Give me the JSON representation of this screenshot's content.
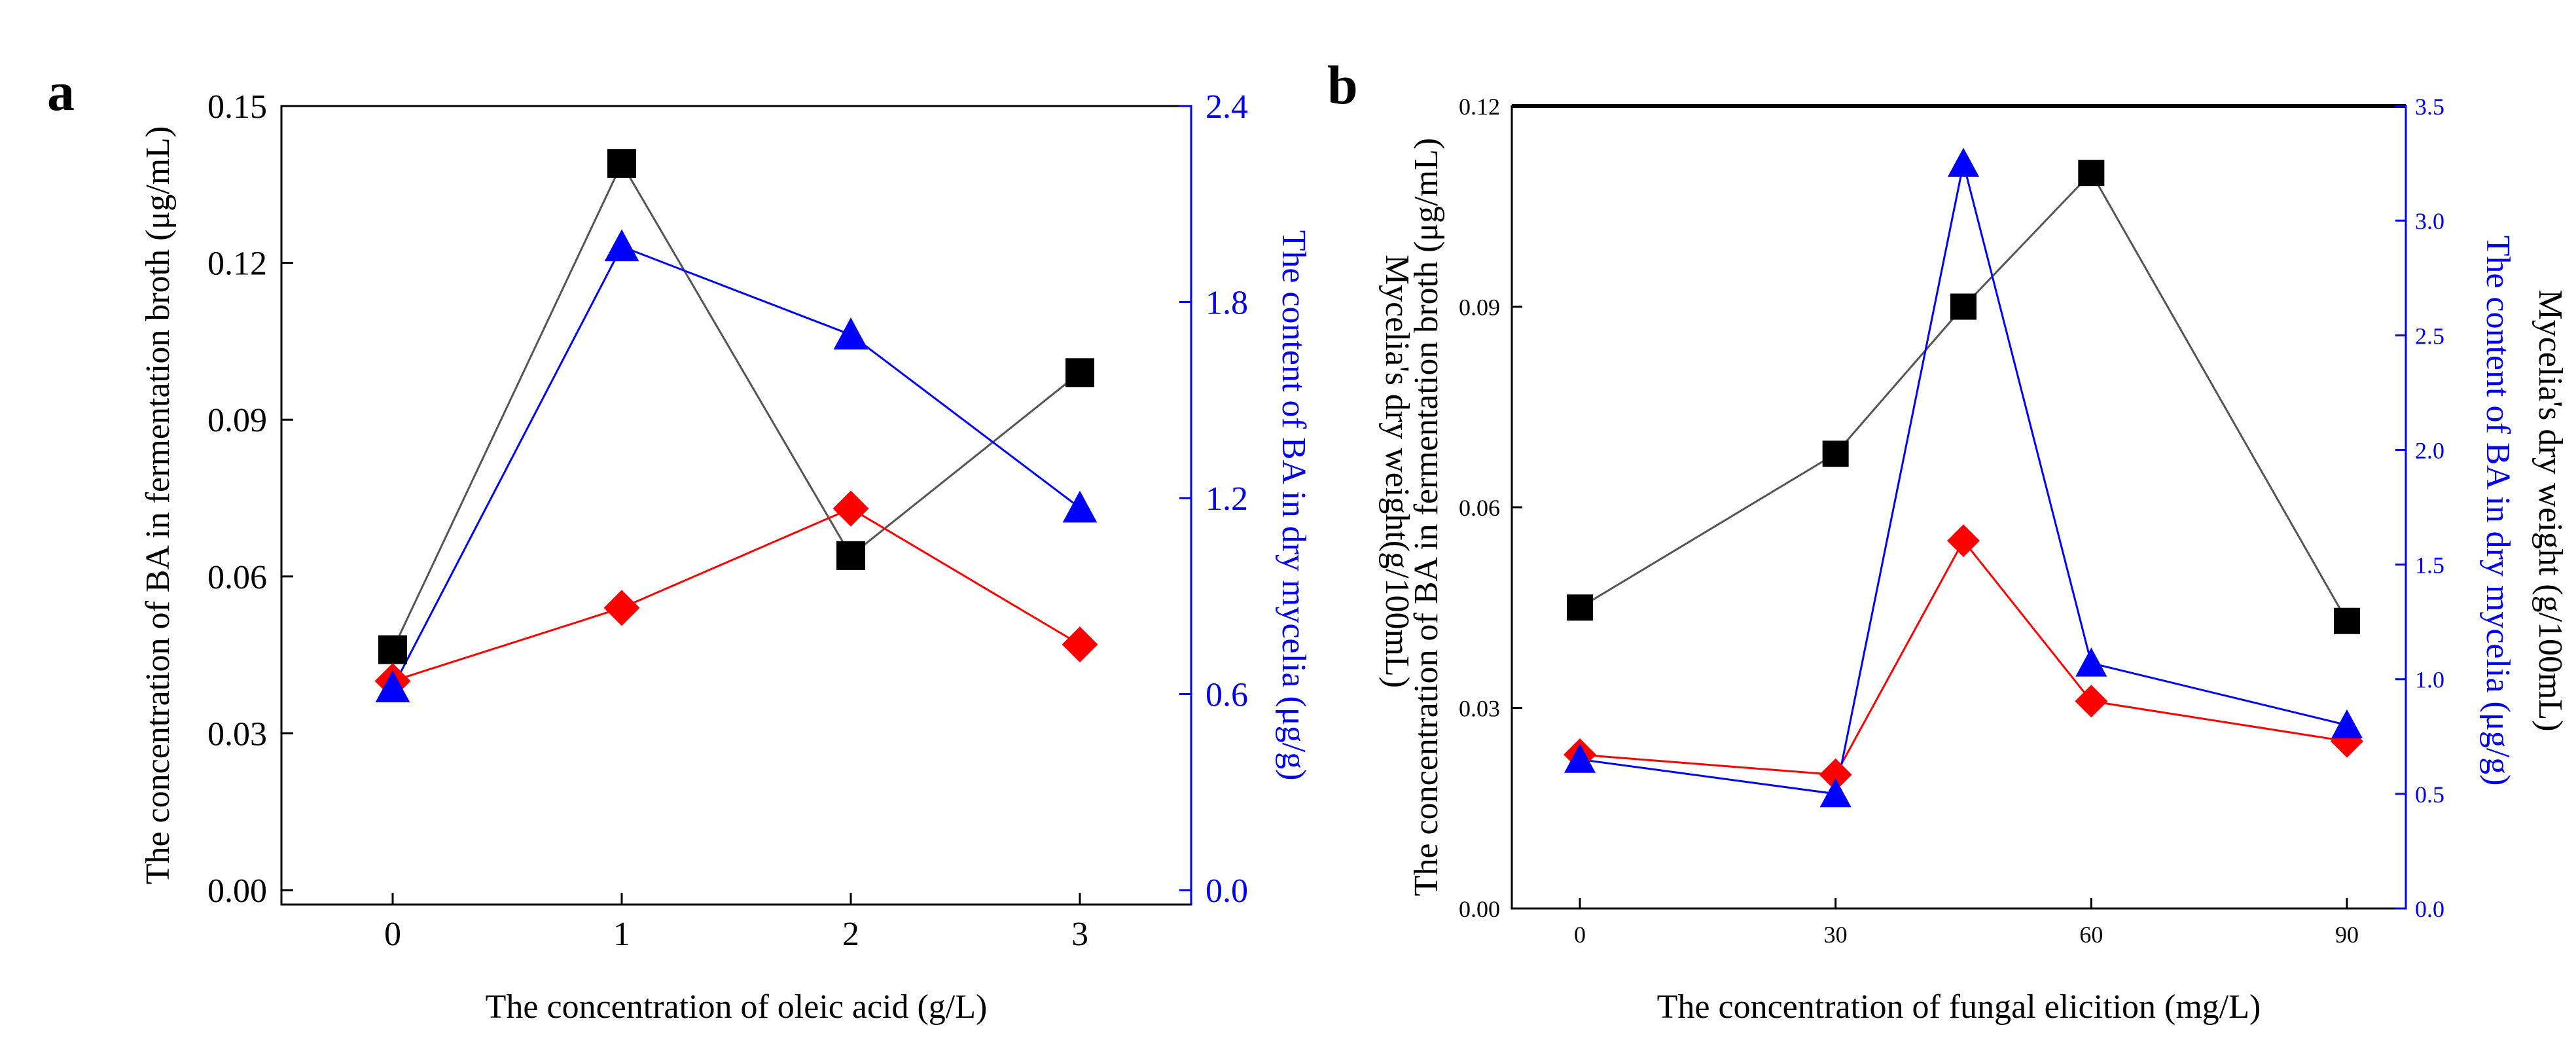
{
  "colors": {
    "black_series": "#000000",
    "black_line": "#555555",
    "red_series": "#ff0000",
    "blue_series": "#0000ff",
    "blue_axis": "#0000ee"
  },
  "chart_data": [
    {
      "panel": "a",
      "type": "line",
      "categories": [
        "0",
        "1",
        "2",
        "3"
      ],
      "xlabel": "The concentration of oleic acid (g/L)",
      "ylabel": "The concentration of BA in fermentation broth (μg/mL)",
      "ylabel_right": "The content of BA in dry mycelia (μg/g)",
      "ylim": [
        0,
        0.15
      ],
      "yticks": [
        "0.00",
        "0.03",
        "0.06",
        "0.09",
        "0.12",
        "0.15"
      ],
      "ylim_right": [
        0,
        2.4
      ],
      "yticks_right": [
        "0.0",
        "0.6",
        "1.2",
        "1.8",
        "2.4"
      ],
      "series": [
        {
          "name": "BA concentration in fermentation broth",
          "marker": "square",
          "axis": "left",
          "values": [
            0.046,
            0.139,
            0.064,
            0.099
          ]
        },
        {
          "name": "Mycelia dry weight",
          "marker": "diamond",
          "axis": "left",
          "values": [
            0.04,
            0.054,
            0.073,
            0.047
          ]
        },
        {
          "name": "BA content in dry mycelia",
          "marker": "triangle",
          "axis": "right",
          "values": [
            0.62,
            1.97,
            1.7,
            1.17
          ]
        }
      ]
    },
    {
      "panel": "b",
      "type": "line",
      "categories": [
        "0",
        "30",
        "45",
        "60",
        "90"
      ],
      "xticks": [
        "0",
        "30",
        "60",
        "90"
      ],
      "xlabel": "The concentration of fungal elicition (mg/L)",
      "ylabel": "The concentration of BA in fermentation broth (μg/mL)",
      "ylabel_inner": "Mycelia's dry weight(g/100mL)",
      "ylabel_right": "The content of BA in dry mycelia (μg/g)",
      "ylabel_far_right": "Mycelia's dry weight (g/100mL)",
      "ylim": [
        0,
        0.12
      ],
      "yticks": [
        "0.00",
        "0.03",
        "0.06",
        "0.09",
        "0.12"
      ],
      "ylim_right": [
        0,
        3.5
      ],
      "yticks_right": [
        "0.0",
        "0.5",
        "1.0",
        "1.5",
        "2.0",
        "2.5",
        "3.0",
        "3.5"
      ],
      "series": [
        {
          "name": "BA concentration in fermentation broth",
          "marker": "square",
          "axis": "left",
          "x": [
            0,
            30,
            45,
            60,
            90
          ],
          "values": [
            0.045,
            0.068,
            0.09,
            0.11,
            0.043
          ]
        },
        {
          "name": "Mycelia dry weight",
          "marker": "diamond",
          "axis": "left",
          "x": [
            0,
            30,
            45,
            60,
            90
          ],
          "values": [
            0.023,
            0.02,
            0.055,
            0.031,
            0.025
          ]
        },
        {
          "name": "BA content in dry mycelia",
          "marker": "triangle",
          "axis": "right",
          "x": [
            0,
            30,
            45,
            60,
            90
          ],
          "values": [
            0.65,
            0.5,
            3.25,
            1.07,
            0.8
          ]
        }
      ]
    }
  ]
}
